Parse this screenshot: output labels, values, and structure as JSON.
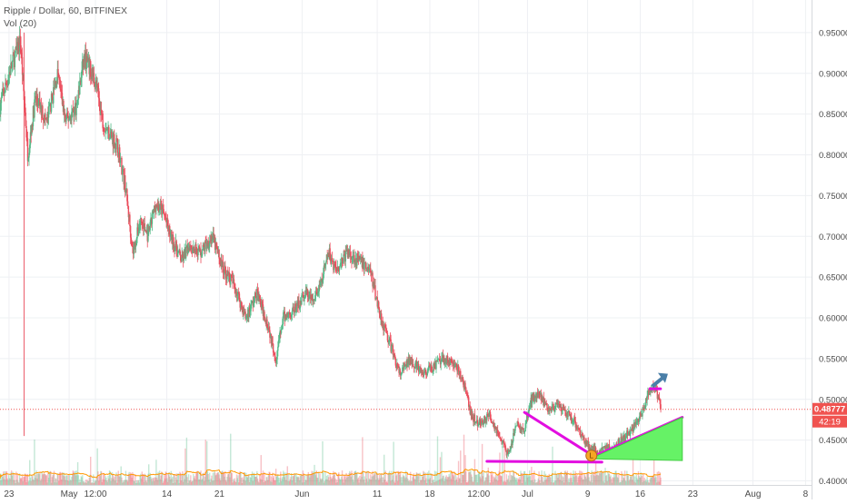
{
  "legend": {
    "symbol_line": "Ripple / Dollar, 60, BITFINEX",
    "volume_line": "Vol (20)"
  },
  "colors": {
    "up": "#53b987",
    "down": "#eb4d5c",
    "grid": "#eef0f3",
    "price_line": "#f05350",
    "trendline": "#e20ee0",
    "triangle_fill": "#66f266",
    "arrow": "#4a7fa8",
    "volume_ma": "#ff9800"
  },
  "price_tags": {
    "last_price": "0.48777",
    "countdown": "42:19"
  },
  "chart_data": {
    "type": "candlestick",
    "title": "Ripple / Dollar, 60, BITFINEX",
    "ylim": [
      0.395,
      0.99
    ],
    "y_ticks": [
      {
        "value": 0.95,
        "label": "0.95000"
      },
      {
        "value": 0.9,
        "label": "0.90000"
      },
      {
        "value": 0.85,
        "label": "0.85000"
      },
      {
        "value": 0.8,
        "label": "0.80000"
      },
      {
        "value": 0.75,
        "label": "0.75000"
      },
      {
        "value": 0.7,
        "label": "0.70000"
      },
      {
        "value": 0.65,
        "label": "0.65000"
      },
      {
        "value": 0.6,
        "label": "0.60000"
      },
      {
        "value": 0.55,
        "label": "0.55000"
      },
      {
        "value": 0.5,
        "label": "0.50000"
      },
      {
        "value": 0.45,
        "label": "0.45000"
      },
      {
        "value": 0.4,
        "label": "0.40000"
      }
    ],
    "xlim_day": [
      -6.2,
      101.8
    ],
    "x_ticks": [
      {
        "day": -5,
        "label": "23"
      },
      {
        "day": 3,
        "label": "May"
      },
      {
        "day": 6.5,
        "label": "12:00"
      },
      {
        "day": 16,
        "label": "14"
      },
      {
        "day": 23,
        "label": "21"
      },
      {
        "day": 34,
        "label": "Jun"
      },
      {
        "day": 44,
        "label": "11"
      },
      {
        "day": 51,
        "label": "18"
      },
      {
        "day": 57.5,
        "label": "12:00"
      },
      {
        "day": 64,
        "label": "Jul"
      },
      {
        "day": 72,
        "label": "9"
      },
      {
        "day": 79,
        "label": "16"
      },
      {
        "day": 86,
        "label": "23"
      },
      {
        "day": 94,
        "label": "Aug"
      },
      {
        "day": 101,
        "label": "8"
      }
    ],
    "price_path": [
      [
        -6.2,
        0.86
      ],
      [
        -5,
        0.9
      ],
      [
        -3.5,
        0.94
      ],
      [
        -2.5,
        0.8
      ],
      [
        -1.5,
        0.87
      ],
      [
        0,
        0.84
      ],
      [
        1.5,
        0.9
      ],
      [
        2.5,
        0.84
      ],
      [
        4,
        0.86
      ],
      [
        5,
        0.92
      ],
      [
        6.5,
        0.89
      ],
      [
        7.5,
        0.84
      ],
      [
        9.5,
        0.81
      ],
      [
        10.5,
        0.76
      ],
      [
        11.5,
        0.68
      ],
      [
        12.5,
        0.72
      ],
      [
        13.5,
        0.7
      ],
      [
        14.5,
        0.74
      ],
      [
        15.5,
        0.73
      ],
      [
        16.5,
        0.7
      ],
      [
        18,
        0.67
      ],
      [
        19,
        0.69
      ],
      [
        20.5,
        0.68
      ],
      [
        22,
        0.7
      ],
      [
        23.5,
        0.66
      ],
      [
        25,
        0.64
      ],
      [
        26.5,
        0.6
      ],
      [
        28,
        0.63
      ],
      [
        29.5,
        0.59
      ],
      [
        30.5,
        0.55
      ],
      [
        31.5,
        0.6
      ],
      [
        33,
        0.61
      ],
      [
        34.5,
        0.63
      ],
      [
        35.5,
        0.62
      ],
      [
        36.5,
        0.64
      ],
      [
        37.5,
        0.68
      ],
      [
        38.5,
        0.66
      ],
      [
        40,
        0.68
      ],
      [
        41.5,
        0.67
      ],
      [
        43,
        0.66
      ],
      [
        44.5,
        0.6
      ],
      [
        46,
        0.56
      ],
      [
        47,
        0.53
      ],
      [
        48.5,
        0.55
      ],
      [
        50,
        0.53
      ],
      [
        51.5,
        0.54
      ],
      [
        53,
        0.55
      ],
      [
        54.5,
        0.54
      ],
      [
        55.5,
        0.52
      ],
      [
        56.5,
        0.48
      ],
      [
        57.5,
        0.47
      ],
      [
        59,
        0.48
      ],
      [
        60.5,
        0.45
      ],
      [
        61.5,
        0.43
      ],
      [
        62.5,
        0.47
      ],
      [
        63.5,
        0.46
      ],
      [
        64.5,
        0.5
      ],
      [
        65.5,
        0.51
      ],
      [
        66.5,
        0.49
      ],
      [
        68,
        0.49
      ],
      [
        69.5,
        0.48
      ],
      [
        70.5,
        0.47
      ],
      [
        71.5,
        0.45
      ],
      [
        72.5,
        0.44
      ],
      [
        73.5,
        0.435
      ],
      [
        74.5,
        0.44
      ],
      [
        75.5,
        0.44
      ],
      [
        76.5,
        0.45
      ],
      [
        77.5,
        0.46
      ],
      [
        78.5,
        0.47
      ],
      [
        79.5,
        0.49
      ],
      [
        80.2,
        0.51
      ],
      [
        80.8,
        0.515
      ],
      [
        81.3,
        0.505
      ],
      [
        81.8,
        0.488
      ]
    ],
    "drawings": [
      {
        "type": "trendline",
        "from": [
          63.6,
          0.484
        ],
        "to": [
          72.5,
          0.432
        ]
      },
      {
        "type": "trendline",
        "from": [
          58.6,
          0.424
        ],
        "to": [
          73.9,
          0.423
        ]
      },
      {
        "type": "trendline",
        "from": [
          72.3,
          0.428
        ],
        "to": [
          84.6,
          0.478
        ]
      },
      {
        "type": "filled_triangle",
        "points": [
          [
            72.3,
            0.427
          ],
          [
            84.6,
            0.478
          ],
          [
            84.6,
            0.425
          ]
        ]
      },
      {
        "type": "trendline",
        "from": [
          80.3,
          0.513
        ],
        "to": [
          81.7,
          0.513
        ]
      },
      {
        "type": "arrow",
        "from": [
          80.6,
          0.516
        ],
        "to": [
          82.2,
          0.528
        ]
      },
      {
        "type": "marker",
        "label": "L",
        "at": [
          72.5,
          0.431
        ]
      }
    ],
    "volume_panel": {
      "label": "Vol (20)",
      "ma_series_name": "Vol (20)"
    },
    "last_price": 0.48777
  }
}
